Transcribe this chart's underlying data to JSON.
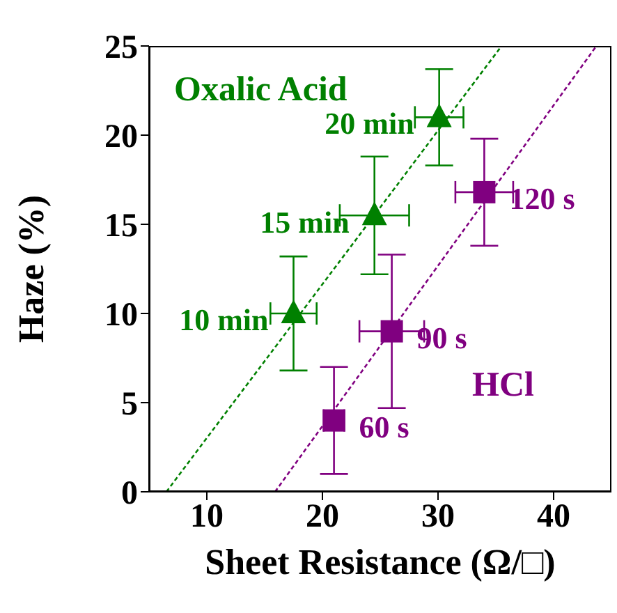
{
  "chart_data": {
    "type": "scatter",
    "xlabel": "Sheet Resistance (Ω/□)",
    "ylabel": "Haze (%)",
    "xlim": [
      5,
      45
    ],
    "xticks": [
      10,
      20,
      30,
      40
    ],
    "ylim": [
      0,
      25
    ],
    "yticks": [
      0,
      5,
      10,
      15,
      20,
      25
    ],
    "grid": false,
    "legend": false,
    "annotations": [
      {
        "text": "10 min",
        "x": 17.5,
        "y": 10.0
      },
      {
        "text": "15 min",
        "x": 24.5,
        "y": 15.5
      },
      {
        "text": "20 min",
        "x": 30.1,
        "y": 21.0
      },
      {
        "text": "60 s",
        "x": 21.0,
        "y": 4.0
      },
      {
        "text": "90 s",
        "x": 26.0,
        "y": 9.0
      },
      {
        "text": "120 s",
        "x": 34.0,
        "y": 16.8
      }
    ],
    "series": [
      {
        "name": "Oxalic Acid",
        "color": "#008000",
        "marker": "triangle",
        "x": [
          17.5,
          24.5,
          30.1
        ],
        "values": [
          10.0,
          15.5,
          21.0
        ],
        "errors": [
          3.2,
          3.3,
          2.7
        ],
        "xerrors": [
          2.0,
          3.0,
          2.1
        ]
      },
      {
        "name": "HCl",
        "color": "#800080",
        "marker": "square",
        "x": [
          21.0,
          26.0,
          34.0
        ],
        "values": [
          4.0,
          9.0,
          16.8
        ],
        "errors": [
          3.0,
          4.3,
          3.0
        ],
        "xerrors": [
          0.9,
          2.8,
          2.5
        ]
      },
      {
        "type": "line",
        "color": "#008000",
        "line_style": "dashed",
        "marker": "none",
        "x": [
          6.5,
          35.5
        ],
        "values": [
          0,
          25
        ]
      },
      {
        "type": "line",
        "color": "#800080",
        "line_style": "dashed",
        "marker": "none",
        "x": [
          15.9,
          43.7
        ],
        "values": [
          0,
          25
        ]
      }
    ]
  }
}
